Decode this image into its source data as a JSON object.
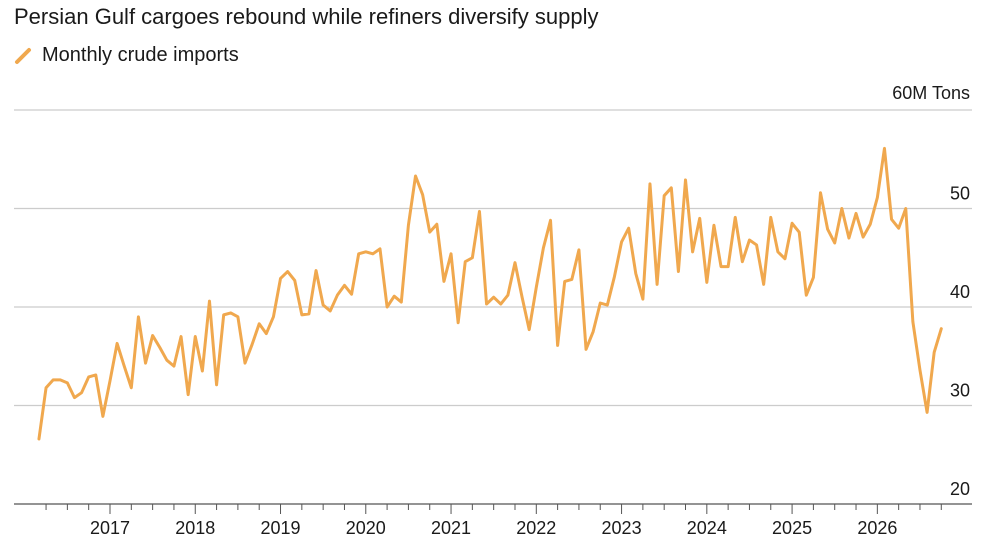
{
  "chart_data": {
    "type": "line",
    "title": "Persian Gulf cargoes rebound while refiners diversify supply",
    "unit_label": "60M Tons",
    "series": [
      {
        "name": "Monthly crude imports",
        "color": "#f0a84e",
        "start": "2016-03",
        "values": [
          26.6,
          31.8,
          32.6,
          32.6,
          32.3,
          30.8,
          31.3,
          32.9,
          33.1,
          28.9,
          32.5,
          36.3,
          34.0,
          31.8,
          39.0,
          34.3,
          37.1,
          35.9,
          34.6,
          34.0,
          37.0,
          31.1,
          37.0,
          33.5,
          40.6,
          32.1,
          39.2,
          39.4,
          39.0,
          34.3,
          36.2,
          38.3,
          37.3,
          39.0,
          42.9,
          43.6,
          42.7,
          39.2,
          39.3,
          43.7,
          40.2,
          39.6,
          41.2,
          42.2,
          41.3,
          45.4,
          45.6,
          45.4,
          45.9,
          40.0,
          41.1,
          40.5,
          48.3,
          53.3,
          51.4,
          47.6,
          48.4,
          42.6,
          45.4,
          38.4,
          44.6,
          45.0,
          49.7,
          40.3,
          41.0,
          40.3,
          41.2,
          44.5,
          41.0,
          37.7,
          42.0,
          46.0,
          48.8,
          36.1,
          42.6,
          42.8,
          45.8,
          35.7,
          37.5,
          40.4,
          40.2,
          43.1,
          46.6,
          48.0,
          43.4,
          40.8,
          52.5,
          42.3,
          51.3,
          52.1,
          43.6,
          52.9,
          45.6,
          49.0,
          42.5,
          48.3,
          44.1,
          44.1,
          49.1,
          44.6,
          46.8,
          46.3,
          42.3,
          49.1,
          45.6,
          44.9,
          48.5,
          47.6,
          41.2,
          43.0,
          51.6,
          47.9,
          46.5,
          50.0,
          47.0,
          49.5,
          47.1,
          48.4,
          51.1,
          56.1,
          48.9,
          48.0,
          50.0,
          38.5,
          33.6,
          29.3,
          35.4,
          37.8
        ]
      }
    ],
    "x_ticks": [
      "2017",
      "2018",
      "2019",
      "2020",
      "2021",
      "2022",
      "2023",
      "2024",
      "2025",
      "2026"
    ],
    "y_ticks": [
      20,
      30,
      40,
      50
    ],
    "ylim": [
      20,
      60
    ],
    "grid": true,
    "legend_position": "top-left"
  }
}
